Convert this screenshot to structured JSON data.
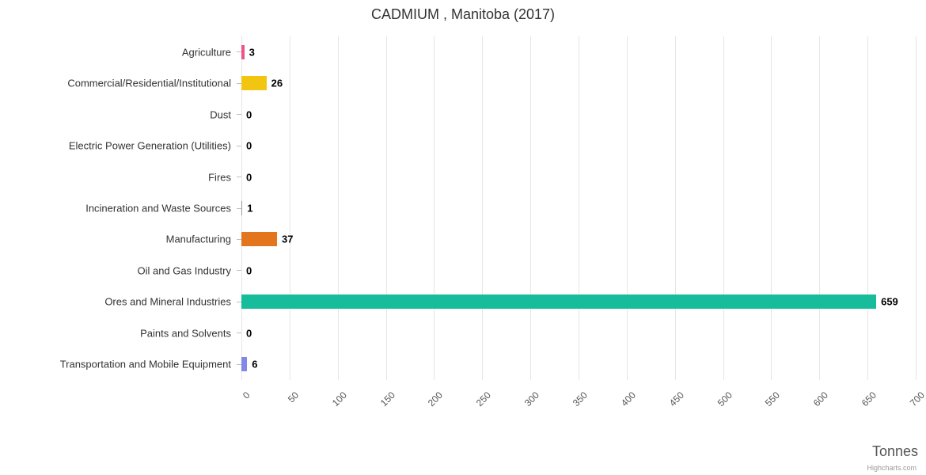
{
  "title": "CADMIUM , Manitoba (2017)",
  "credits": "Highcharts.com",
  "chart_data": {
    "type": "bar",
    "orientation": "horizontal",
    "title": "CADMIUM , Manitoba (2017)",
    "categories": [
      "Agriculture",
      "Commercial/Residential/Institutional",
      "Dust",
      "Electric Power Generation (Utilities)",
      "Fires",
      "Incineration and Waste Sources",
      "Manufacturing",
      "Oil and Gas Industry",
      "Ores and Mineral Industries",
      "Paints and Solvents",
      "Transportation and Mobile Equipment"
    ],
    "values": [
      3,
      26,
      0,
      0,
      0,
      1,
      37,
      0,
      659,
      0,
      6
    ],
    "data_labels": [
      "3",
      "26",
      "0",
      "0",
      "0",
      "1",
      "37",
      "0",
      "659",
      "0",
      "6"
    ],
    "colors": [
      "#ee5587",
      "#f2c511",
      "#bbbbbb",
      "#bbbbbb",
      "#bbbbbb",
      "#999999",
      "#e3761c",
      "#bbbbbb",
      "#17bd9a",
      "#bbbbbb",
      "#8288e8"
    ],
    "xlabel": "Tonnes",
    "xlim": [
      0,
      700
    ],
    "tick_interval": 50,
    "tick_labels": [
      "0",
      "50",
      "100",
      "150",
      "200",
      "250",
      "300",
      "350",
      "400",
      "450",
      "500",
      "550",
      "600",
      "650",
      "700"
    ],
    "grid": true,
    "legend": false,
    "data_labels_visible": true
  }
}
